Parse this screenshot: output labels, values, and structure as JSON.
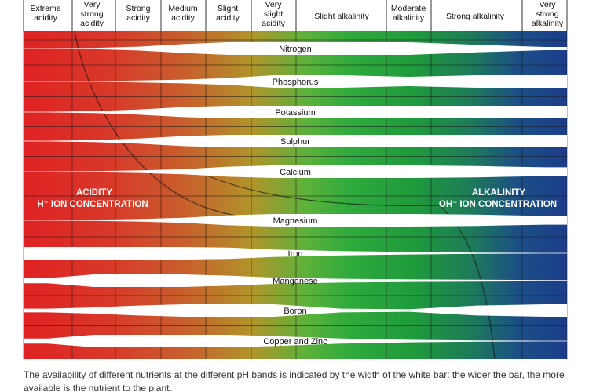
{
  "header": {
    "labels": [
      [
        "Extreme",
        "acidity"
      ],
      [
        "Very",
        "strong",
        "acidity"
      ],
      [
        "Strong",
        "acidity"
      ],
      [
        "Medium",
        "acidity"
      ],
      [
        "Slight",
        "acidity"
      ],
      [
        "Very",
        "slight",
        "acidity"
      ],
      [
        "Slight alkalinity"
      ],
      [
        "Moderate",
        "alkalinity"
      ],
      [
        "Strong alkalinity"
      ],
      [
        "Very",
        "strong",
        "alkalinity"
      ]
    ]
  },
  "nutrients": [
    {
      "name": "Nitrogen",
      "widths": [
        0.05,
        0.1,
        0.3,
        0.7,
        1,
        1,
        1,
        1,
        0.6,
        0.25
      ]
    },
    {
      "name": "Phosphorus",
      "widths": [
        0.05,
        0.05,
        0.15,
        0.3,
        0.55,
        1,
        1,
        0.75,
        1,
        1
      ]
    },
    {
      "name": "Potassium",
      "widths": [
        0.05,
        0.15,
        0.4,
        0.8,
        1,
        1,
        1,
        1,
        1,
        1
      ]
    },
    {
      "name": "Sulphur",
      "widths": [
        0.05,
        0.15,
        0.4,
        0.8,
        1,
        1,
        1,
        1,
        1,
        1
      ]
    },
    {
      "name": "Calcium",
      "widths": [
        0.05,
        0.1,
        0.2,
        0.4,
        0.8,
        1,
        1,
        1,
        0.9,
        0.7
      ]
    },
    {
      "name": "Magnesium",
      "widths": [
        0.05,
        0.1,
        0.2,
        0.4,
        0.8,
        1,
        1,
        1,
        0.9,
        0.7
      ]
    },
    {
      "name": "Iron",
      "widths": [
        1,
        1,
        1,
        1,
        0.9,
        0.6,
        0.35,
        0.2,
        0.1,
        0.05
      ]
    },
    {
      "name": "Manganese",
      "widths": [
        0.4,
        1,
        1,
        1,
        0.8,
        0.5,
        0.3,
        0.2,
        0.15,
        0.1
      ]
    },
    {
      "name": "Boron",
      "widths": [
        0.3,
        0.5,
        0.8,
        1,
        1,
        1,
        0.3,
        0.2,
        0.8,
        1
      ]
    },
    {
      "name": "Copper and Zinc",
      "widths": [
        0.4,
        1,
        1,
        1,
        1,
        0.8,
        0.4,
        0.2,
        0.1,
        0.05
      ]
    }
  ],
  "acidity_label": {
    "line1": "ACIDITY",
    "line2": "H⁺ ION CONCENTRATION"
  },
  "alkalinity_label": {
    "line1": "ALKALINITY",
    "line2": "OH⁻ ION CONCENTRATION"
  },
  "caption": "The availability of different nutrients at the different pH bands is indicated by the width of the white bar: the wider the bar, the more available is the nutrient to the plant."
}
